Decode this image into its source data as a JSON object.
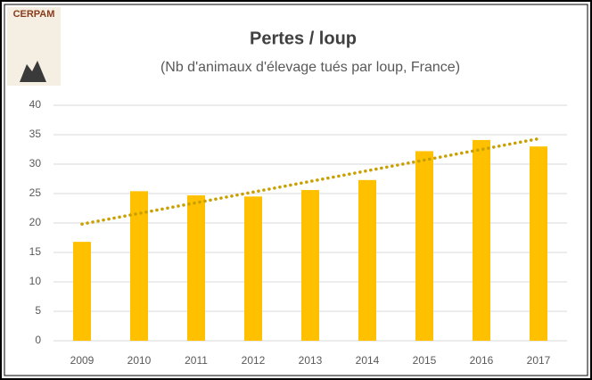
{
  "logo": "CERPAM",
  "chart_data": {
    "type": "bar",
    "title": "Pertes / loup",
    "subtitle": "(Nb d'animaux d'élevage tués par loup, France)",
    "categories": [
      "2009",
      "2010",
      "2011",
      "2012",
      "2013",
      "2014",
      "2015",
      "2016",
      "2017"
    ],
    "values": [
      16.8,
      25.4,
      24.7,
      24.5,
      25.6,
      27.3,
      32.2,
      34.1,
      33.0
    ],
    "color": "#ffc000",
    "trendline": "linear",
    "trendline_color": "#c9a000",
    "ylim": [
      0,
      40
    ],
    "yticks": [
      0,
      5,
      10,
      15,
      20,
      25,
      30,
      35,
      40
    ],
    "grid": true
  }
}
